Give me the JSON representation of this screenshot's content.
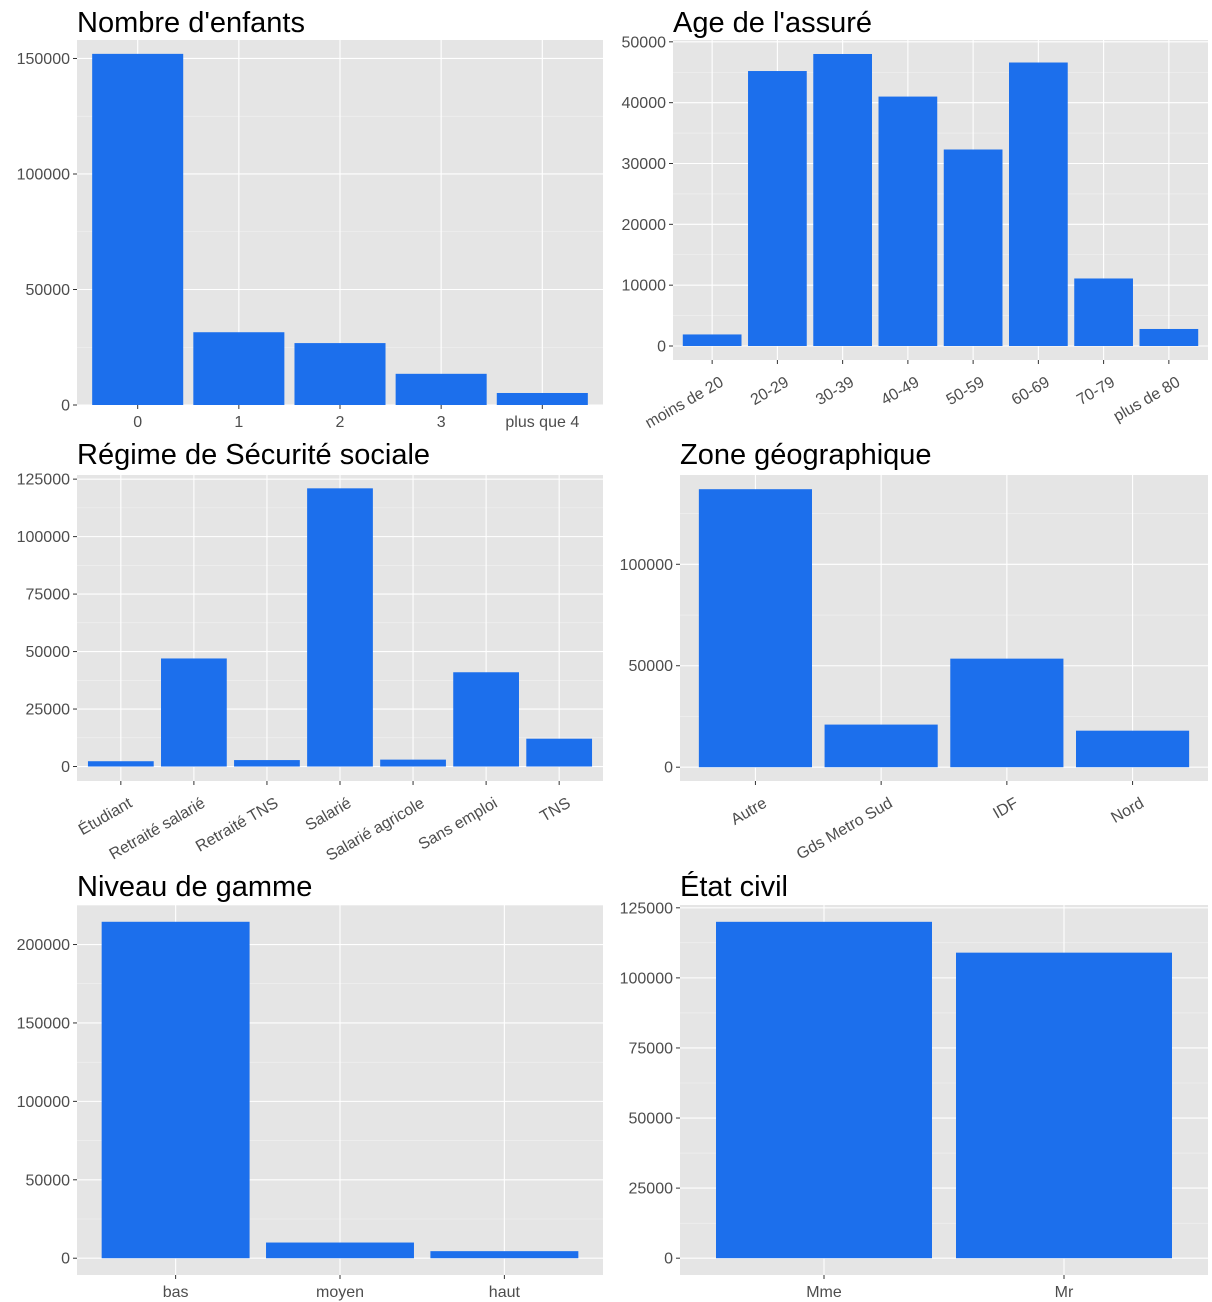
{
  "chart_data": [
    {
      "type": "bar",
      "title": "Nombre d'enfants",
      "xlabel": "",
      "ylabel": "",
      "categories": [
        "0",
        "1",
        "2",
        "3",
        "plus que 4"
      ],
      "values": [
        152000,
        31500,
        26800,
        13500,
        5200
      ],
      "ylim": [
        0,
        158000
      ],
      "yticks": [
        0,
        50000,
        100000,
        150000
      ],
      "ytick_labels": [
        "0",
        "50000",
        "100000",
        "150000"
      ],
      "grid": true,
      "color": "#1c6fec"
    },
    {
      "type": "bar",
      "title": "Age de l'assuré",
      "xlabel": "",
      "ylabel": "",
      "categories": [
        "moins de 20",
        "20-29",
        "30-39",
        "40-49",
        "50-59",
        "60-69",
        "70-79",
        "plus de 80"
      ],
      "values": [
        1900,
        45200,
        48000,
        41000,
        32300,
        46600,
        11100,
        2800
      ],
      "ylim": [
        -2300,
        50300
      ],
      "yticks": [
        0,
        10000,
        20000,
        30000,
        40000,
        50000
      ],
      "ytick_labels": [
        "0",
        "10000",
        "20000",
        "30000",
        "40000",
        "50000"
      ],
      "x_rotated": true,
      "grid": true,
      "color": "#1c6fec"
    },
    {
      "type": "bar",
      "title": "Régime de Sécurité sociale",
      "xlabel": "",
      "ylabel": "",
      "categories": [
        "Étudiant",
        "Retraité salarié",
        "Retraité TNS",
        "Salarié",
        "Salarié agricole",
        "Sans emploi",
        "TNS"
      ],
      "values": [
        2300,
        47000,
        2800,
        121000,
        3000,
        41000,
        12100
      ],
      "ylim": [
        -6300,
        126800
      ],
      "yticks": [
        0,
        25000,
        50000,
        75000,
        100000,
        125000
      ],
      "ytick_labels": [
        "0",
        "25000",
        "50000",
        "75000",
        "100000",
        "125000"
      ],
      "x_rotated": true,
      "grid": true,
      "color": "#1c6fec"
    },
    {
      "type": "bar",
      "title": "Zone géographique",
      "xlabel": "",
      "ylabel": "",
      "categories": [
        "Autre",
        "Gds Metro Sud",
        "IDF",
        "Nord"
      ],
      "values": [
        137000,
        21000,
        53500,
        18000
      ],
      "ylim": [
        -6800,
        144000
      ],
      "yticks": [
        0,
        50000,
        100000
      ],
      "ytick_labels": [
        "0",
        "50000",
        "100000"
      ],
      "x_rotated": true,
      "grid": true,
      "color": "#1c6fec"
    },
    {
      "type": "bar",
      "title": "Niveau de gamme",
      "xlabel": "",
      "ylabel": "",
      "categories": [
        "bas",
        "moyen",
        "haut"
      ],
      "values": [
        214500,
        10000,
        4500
      ],
      "ylim": [
        -10700,
        225200
      ],
      "yticks": [
        0,
        50000,
        100000,
        150000,
        200000
      ],
      "ytick_labels": [
        "0",
        "50000",
        "100000",
        "150000",
        "200000"
      ],
      "grid": true,
      "color": "#1c6fec"
    },
    {
      "type": "bar",
      "title": "État civil",
      "xlabel": "",
      "ylabel": "",
      "categories": [
        "Mme",
        "Mr"
      ],
      "values": [
        120000,
        109000
      ],
      "ylim": [
        -6000,
        126000
      ],
      "yticks": [
        0,
        25000,
        50000,
        75000,
        100000,
        125000
      ],
      "ytick_labels": [
        "0",
        "25000",
        "50000",
        "75000",
        "100000",
        "125000"
      ],
      "grid": true,
      "color": "#1c6fec"
    }
  ]
}
